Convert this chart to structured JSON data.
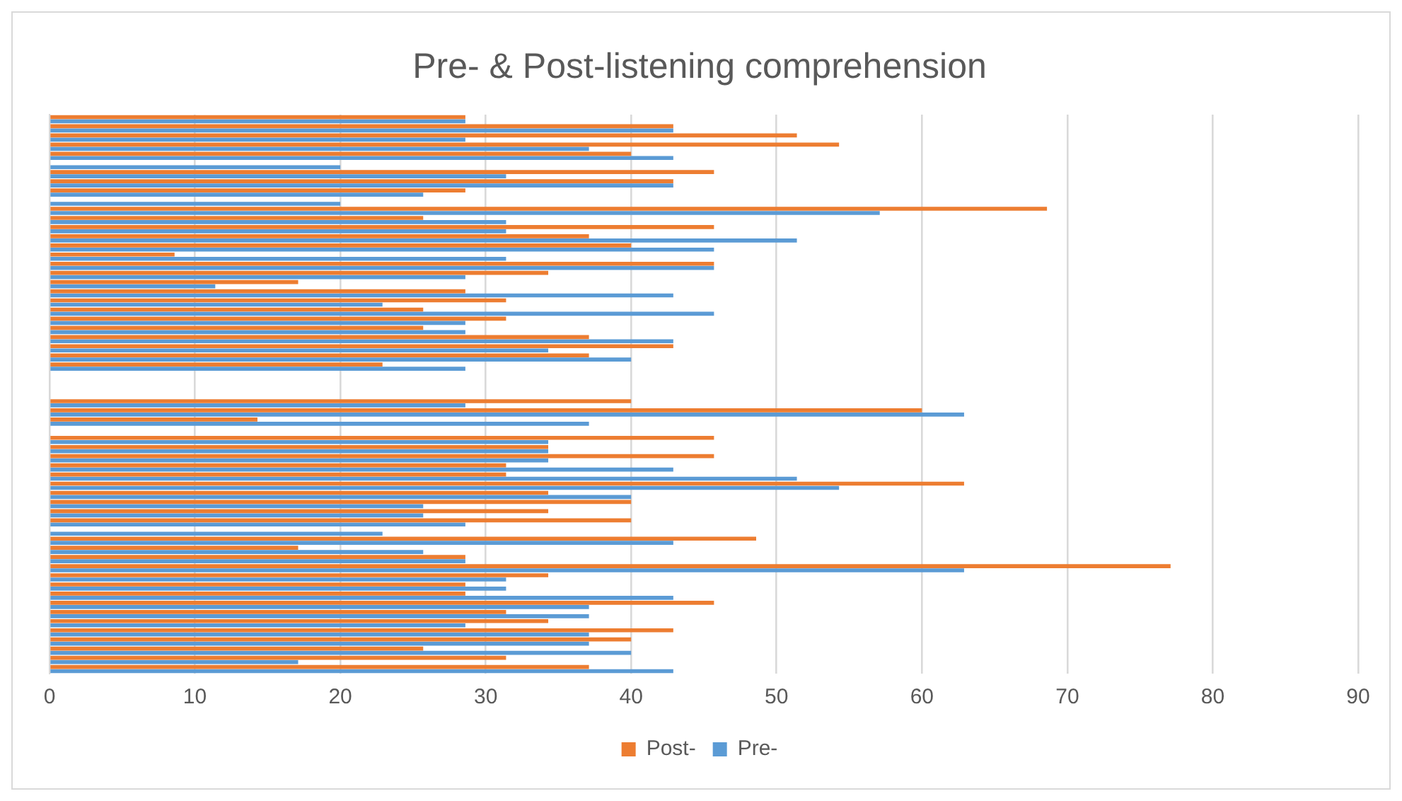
{
  "chart_data": {
    "type": "bar",
    "orientation": "horizontal",
    "title": "Pre- & Post-listening comprehension",
    "categories": [
      null,
      null,
      null,
      null,
      null,
      null,
      null,
      null,
      null,
      null,
      null,
      null,
      null,
      null,
      null,
      null,
      null,
      null,
      null,
      null,
      null,
      null,
      null,
      null,
      null,
      null,
      null,
      null,
      null,
      null,
      null,
      null,
      null,
      null,
      null,
      null,
      null,
      null,
      null,
      null,
      null,
      null,
      null,
      null,
      null,
      null,
      null,
      null,
      null,
      null,
      null,
      null,
      null,
      null,
      null,
      null,
      null,
      null,
      null,
      null,
      null
    ],
    "series": [
      {
        "name": "Post-",
        "color": "#ed7d31",
        "values": [
          28.6,
          42.9,
          51.4,
          54.3,
          40,
          0,
          45.7,
          42.9,
          28.6,
          0,
          68.6,
          25.7,
          45.7,
          37.1,
          40,
          8.6,
          45.7,
          34.3,
          17.1,
          28.6,
          31.4,
          25.7,
          31.4,
          25.7,
          37.1,
          42.9,
          37.1,
          22.9,
          null,
          null,
          null,
          40,
          60,
          14.3,
          null,
          45.7,
          34.3,
          45.7,
          31.4,
          31.4,
          62.9,
          34.3,
          40,
          34.3,
          40,
          0,
          48.6,
          17.1,
          28.6,
          77.1,
          34.3,
          28.6,
          28.6,
          45.7,
          31.4,
          34.3,
          42.9,
          40,
          25.7,
          31.4,
          37.1
        ]
      },
      {
        "name": "Pre-",
        "color": "#5b9bd5",
        "values": [
          28.6,
          42.9,
          28.6,
          37.1,
          42.9,
          20,
          31.4,
          42.9,
          25.7,
          20,
          57.1,
          31.4,
          31.4,
          51.4,
          45.7,
          31.4,
          45.7,
          28.6,
          11.4,
          42.9,
          22.9,
          45.7,
          28.6,
          28.6,
          42.9,
          34.3,
          40,
          28.6,
          null,
          null,
          null,
          28.6,
          62.9,
          37.1,
          null,
          34.3,
          34.3,
          34.3,
          42.9,
          51.4,
          54.3,
          40,
          25.7,
          25.7,
          28.6,
          22.9,
          42.9,
          25.7,
          28.6,
          62.9,
          31.4,
          31.4,
          42.9,
          37.1,
          37.1,
          28.6,
          37.1,
          37.1,
          40,
          17.1,
          42.9
        ]
      }
    ],
    "xlim": [
      0,
      90
    ],
    "xticks": [
      0,
      10,
      20,
      30,
      40,
      50,
      60,
      70,
      80,
      90
    ],
    "grid": "x",
    "legend": "bottom"
  }
}
